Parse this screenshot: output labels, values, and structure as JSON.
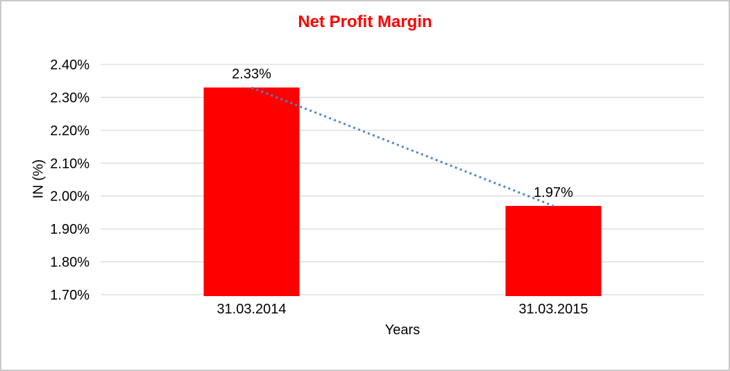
{
  "page": {
    "border_color": "#C9C9C9",
    "background": "#FFFFFF"
  },
  "chart_data": {
    "type": "bar",
    "title": "Net Profit Margin",
    "xlabel": "Years",
    "ylabel": "IN (%)",
    "categories": [
      "31.03.2014",
      "31.03.2015"
    ],
    "series": [
      {
        "name": "Net Profit Margin",
        "values": [
          2.33,
          1.97
        ]
      }
    ],
    "data_labels": [
      "2.33%",
      "1.97%"
    ],
    "ylim": [
      1.7,
      2.4
    ],
    "ytick_step": 0.1,
    "ytick_labels": [
      "2.40%",
      "2.30%",
      "2.20%",
      "2.10%",
      "2.00%",
      "1.90%",
      "1.80%",
      "1.70%"
    ],
    "grid": true,
    "legend_position": "none",
    "trendline": {
      "type": "linear",
      "style": "dotted",
      "points": [
        2.33,
        1.97
      ],
      "color": "#4B87C8"
    },
    "colors": {
      "bar": "#FF0000",
      "title": "#FF0000",
      "gridline": "#D9D9D9",
      "text": "#000000"
    }
  }
}
